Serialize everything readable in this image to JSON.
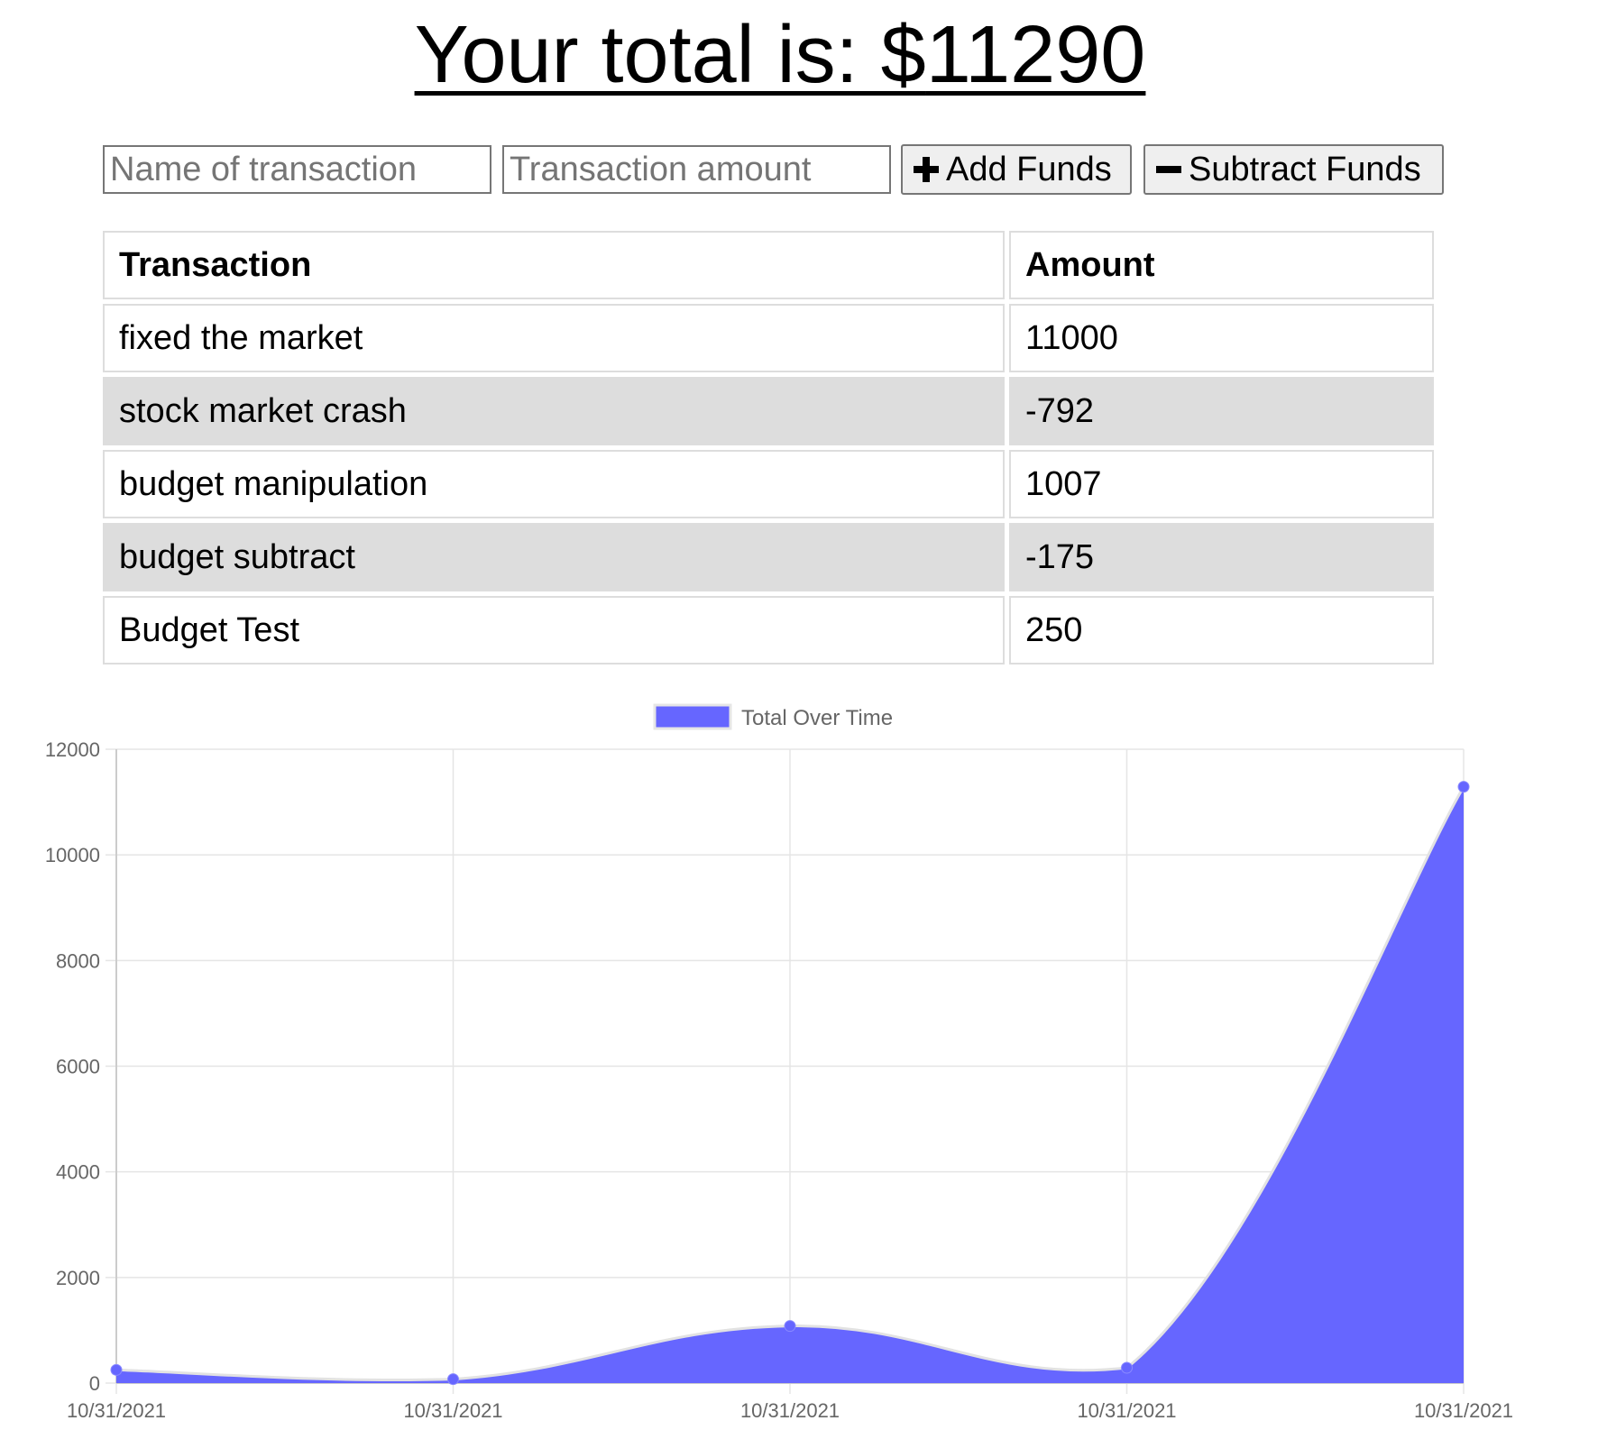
{
  "header": {
    "total_label": "Your total is: $",
    "total_value": "11290"
  },
  "form": {
    "name_placeholder": "Name of transaction",
    "amount_placeholder": "Transaction amount",
    "add_label": "Add Funds",
    "subtract_label": "Subtract Funds",
    "add_icon": "plus-icon",
    "subtract_icon": "minus-icon"
  },
  "table": {
    "headers": [
      "Transaction",
      "Amount"
    ],
    "rows": [
      {
        "name": "fixed the market",
        "amount": "11000"
      },
      {
        "name": "stock market crash",
        "amount": "-792"
      },
      {
        "name": "budget manipulation",
        "amount": "1007"
      },
      {
        "name": "budget subtract",
        "amount": "-175"
      },
      {
        "name": "Budget Test",
        "amount": "250"
      }
    ],
    "alt_row_color": "#dddddd"
  },
  "chart_data": {
    "type": "area",
    "title": "",
    "categories": [
      "10/31/2021",
      "10/31/2021",
      "10/31/2021",
      "10/31/2021",
      "10/31/2021"
    ],
    "series": [
      {
        "name": "Total Over Time",
        "values": [
          250,
          75,
          1082,
          290,
          11290
        ],
        "color": "#6666ff"
      }
    ],
    "yticks": [
      "0",
      "2000",
      "4000",
      "6000",
      "8000",
      "10000",
      "12000"
    ],
    "ylim": [
      0,
      12000
    ],
    "xlabel": "",
    "ylabel": "",
    "grid": true,
    "legend_position": "top"
  }
}
